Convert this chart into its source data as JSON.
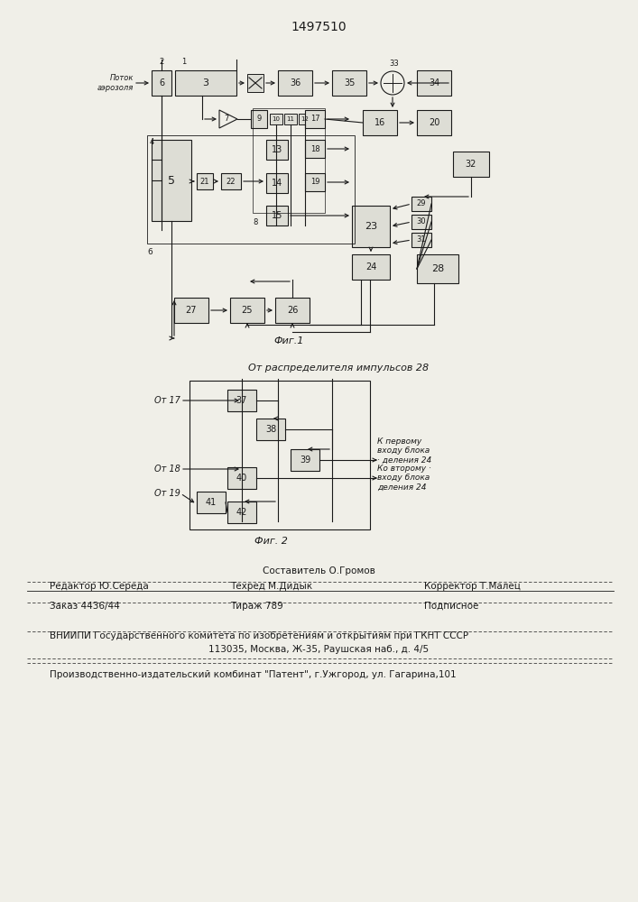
{
  "title": "1497510",
  "fig1_caption": "Фиг.1",
  "fig2_caption": "Фиг. 2",
  "fig2_title": "От распределителя импульсов 28",
  "label_potok": "Поток\nаэрозоля",
  "label_ot17": "От 17",
  "label_ot18": "От 18",
  "label_ot19": "От 19",
  "label_k_perv": "К первому\nвходу блока\n· деления 24",
  "label_ko_vtor": "Ко второму ·\nвходу блока\nделения 24",
  "footer_line1": "Составитель О.Громов",
  "footer_line2_left": "Редактор Ю.Середа",
  "footer_line2_mid": "Техред М.Дидык",
  "footer_line2_right": "Корректор Т.Малец",
  "footer_line3_left": "Заказ 4436/44",
  "footer_line3_mid": "Тираж 789",
  "footer_line3_right": "Подписное",
  "footer_line4": "ВНИИПИ Государственного комитета по изобретениям и открытиям при ГКНТ СССР",
  "footer_line5": "113035, Москва, Ж-35, Раушская наб., д. 4/5",
  "footer_line6": "Производственно-издательский комбинат \"Патент\", г.Ужгород, ул. Гагарина,101",
  "bg_color": "#f0efe8",
  "line_color": "#1a1a1a",
  "box_fill": "#ddddd5"
}
